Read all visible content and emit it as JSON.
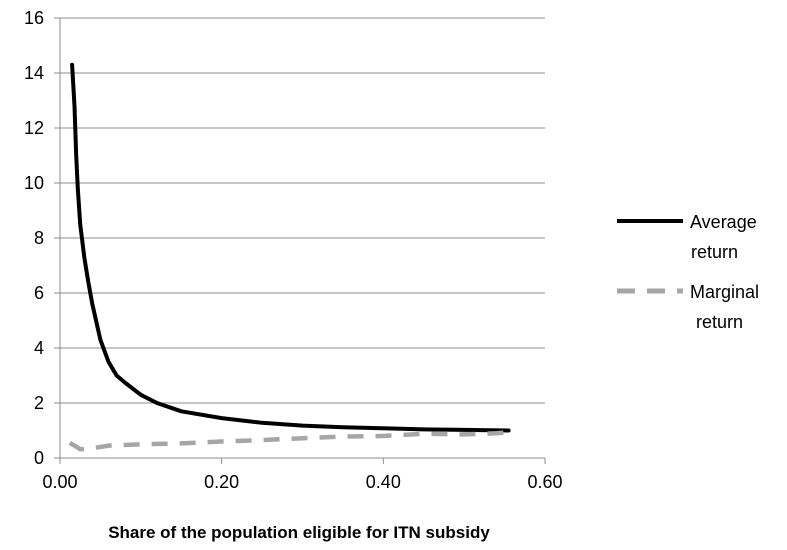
{
  "chart_data": {
    "type": "line",
    "title": "",
    "xlabel": "Share of the population eligible for ITN subsidy",
    "ylabel": "",
    "xlim": [
      0,
      0.6
    ],
    "ylim": [
      0,
      16
    ],
    "x_ticks": [
      "0.00",
      "0.20",
      "0.40",
      "0.60"
    ],
    "y_ticks": [
      "0",
      "2",
      "4",
      "6",
      "8",
      "10",
      "12",
      "14",
      "16"
    ],
    "grid": "horizontal",
    "legend_position": "right",
    "series": [
      {
        "name_lines": [
          "Average",
          "return"
        ],
        "style": "solid",
        "color": "#000000",
        "points": [
          [
            0.015,
            14.3
          ],
          [
            0.018,
            12.8
          ],
          [
            0.02,
            11.0
          ],
          [
            0.022,
            9.8
          ],
          [
            0.025,
            8.5
          ],
          [
            0.03,
            7.3
          ],
          [
            0.035,
            6.4
          ],
          [
            0.04,
            5.6
          ],
          [
            0.05,
            4.3
          ],
          [
            0.06,
            3.5
          ],
          [
            0.07,
            3.0
          ],
          [
            0.08,
            2.75
          ],
          [
            0.1,
            2.3
          ],
          [
            0.12,
            2.0
          ],
          [
            0.15,
            1.7
          ],
          [
            0.2,
            1.45
          ],
          [
            0.25,
            1.28
          ],
          [
            0.3,
            1.18
          ],
          [
            0.35,
            1.12
          ],
          [
            0.4,
            1.08
          ],
          [
            0.45,
            1.04
          ],
          [
            0.5,
            1.02
          ],
          [
            0.555,
            1.0
          ]
        ]
      },
      {
        "name_lines": [
          "Marginal",
          "return"
        ],
        "style": "dashed",
        "color": "#a6a6a6",
        "points": [
          [
            0.012,
            0.55
          ],
          [
            0.018,
            0.45
          ],
          [
            0.025,
            0.32
          ],
          [
            0.035,
            0.33
          ],
          [
            0.06,
            0.45
          ],
          [
            0.1,
            0.5
          ],
          [
            0.15,
            0.53
          ],
          [
            0.2,
            0.6
          ],
          [
            0.25,
            0.65
          ],
          [
            0.3,
            0.72
          ],
          [
            0.35,
            0.78
          ],
          [
            0.4,
            0.8
          ],
          [
            0.45,
            0.88
          ],
          [
            0.5,
            0.86
          ],
          [
            0.54,
            0.9
          ],
          [
            0.55,
            0.92
          ]
        ]
      }
    ]
  }
}
